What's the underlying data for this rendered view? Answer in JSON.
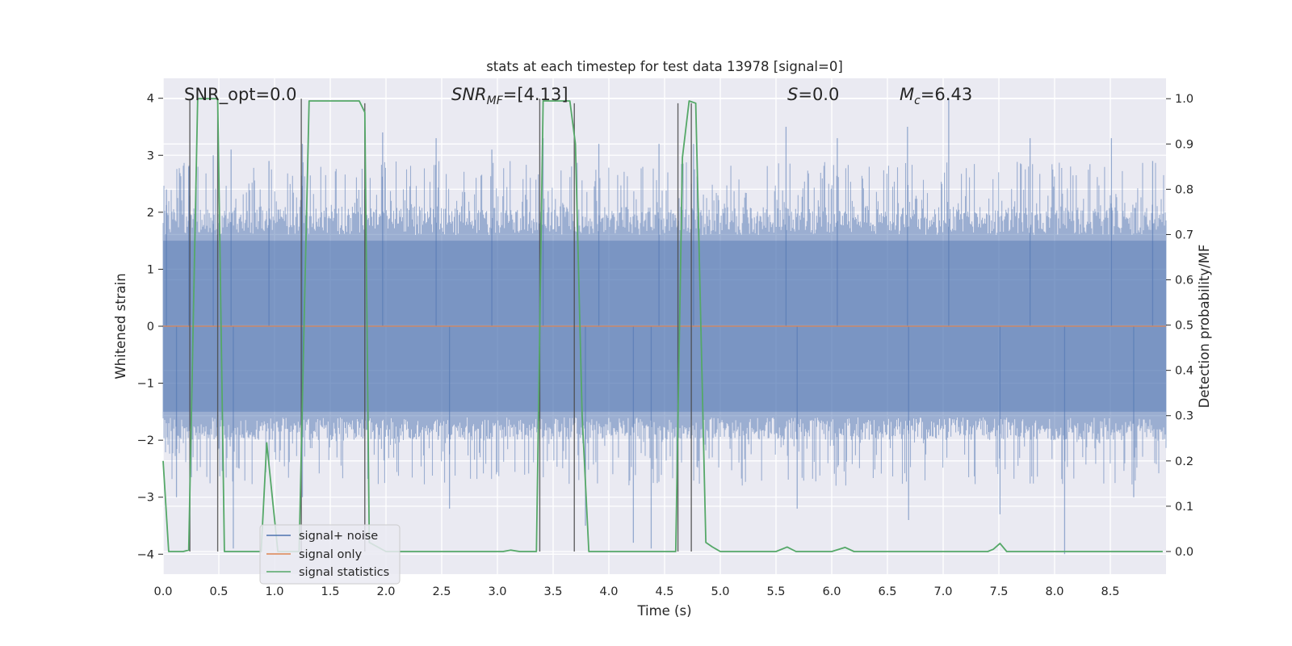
{
  "chart_data": {
    "type": "line",
    "title": "stats at each timestep for test data 13978 [signal=0]",
    "xlabel": "Time (s)",
    "ylabel_left": "Whitened strain",
    "ylabel_right": "Detection probability/MF",
    "xlim": [
      0,
      9.0
    ],
    "ylim_left": [
      -4.35,
      4.35
    ],
    "ylim_right": [
      -0.05,
      1.045
    ],
    "x_ticks": [
      "0.0",
      "0.5",
      "1.0",
      "1.5",
      "2.0",
      "2.5",
      "3.0",
      "3.5",
      "4.0",
      "4.5",
      "5.0",
      "5.5",
      "6.0",
      "6.5",
      "7.0",
      "7.5",
      "8.0",
      "8.5"
    ],
    "y_left_ticks": [
      {
        "v": 4,
        "label": "4"
      },
      {
        "v": 3,
        "label": "3"
      },
      {
        "v": 2,
        "label": "2"
      },
      {
        "v": 1,
        "label": "1"
      },
      {
        "v": 0,
        "label": "0"
      },
      {
        "v": -1,
        "label": "−1"
      },
      {
        "v": -2,
        "label": "−2"
      },
      {
        "v": -3,
        "label": "−3"
      },
      {
        "v": -4,
        "label": "−4"
      }
    ],
    "y_right_ticks": [
      "0.0",
      "0.1",
      "0.2",
      "0.3",
      "0.4",
      "0.5",
      "0.6",
      "0.7",
      "0.8",
      "0.9",
      "1.0"
    ],
    "annotations": {
      "snr_opt": "SNR_opt=0.0",
      "snr_mf_sym": "SNR",
      "snr_mf_sub": "MF",
      "snr_mf_val": "=[4.13]",
      "s_sym": "S",
      "s_val": "=0.0",
      "mc_sym": "M",
      "mc_sub": "c",
      "mc_val": "=6.43"
    },
    "legend": {
      "position": "lower-left",
      "entries": [
        {
          "label": "signal+ noise",
          "color": "#4c72b0"
        },
        {
          "label": "signal only",
          "color": "#dd8452"
        },
        {
          "label": "signal statistics",
          "color": "#55a868"
        }
      ]
    },
    "series": [
      {
        "name": "signal+ noise",
        "color": "#4c72b0",
        "style": "noise band",
        "t_range": [
          0,
          9.0
        ],
        "typical_abs": 1.6,
        "peaks": [
          {
            "t": 0.03,
            "v": 2.4
          },
          {
            "t": 0.23,
            "v": 2.8
          },
          {
            "t": 0.45,
            "v": 3.0
          },
          {
            "t": 0.61,
            "v": 3.1
          },
          {
            "t": 0.95,
            "v": 2.9
          },
          {
            "t": 1.25,
            "v": 3.2
          },
          {
            "t": 1.97,
            "v": 3.4
          },
          {
            "t": 2.45,
            "v": 3.3
          },
          {
            "t": 2.95,
            "v": 3.1
          },
          {
            "t": 3.41,
            "v": 3.3
          },
          {
            "t": 3.91,
            "v": 3.2
          },
          {
            "t": 4.45,
            "v": 3.2
          },
          {
            "t": 4.76,
            "v": 3.2
          },
          {
            "t": 5.59,
            "v": 3.5
          },
          {
            "t": 6.05,
            "v": 3.3
          },
          {
            "t": 6.68,
            "v": 3.5
          },
          {
            "t": 7.05,
            "v": 4.0
          },
          {
            "t": 7.78,
            "v": 3.3
          },
          {
            "t": 8.51,
            "v": 3.3
          },
          {
            "t": 8.88,
            "v": 2.9
          },
          {
            "t": 0.12,
            "v": -3.0
          },
          {
            "t": 0.63,
            "v": -3.9
          },
          {
            "t": 1.25,
            "v": -3.0
          },
          {
            "t": 2.57,
            "v": -3.2
          },
          {
            "t": 3.79,
            "v": -3.5
          },
          {
            "t": 4.22,
            "v": -3.8
          },
          {
            "t": 4.38,
            "v": -3.9
          },
          {
            "t": 5.69,
            "v": -3.2
          },
          {
            "t": 6.69,
            "v": -3.4
          },
          {
            "t": 7.51,
            "v": -3.3
          },
          {
            "t": 8.09,
            "v": -4.0
          },
          {
            "t": 8.71,
            "v": -3.0
          }
        ]
      },
      {
        "name": "signal only",
        "color": "#dd8452",
        "x": [
          0,
          9.0
        ],
        "y": [
          0,
          0
        ]
      },
      {
        "name": "signal statistics",
        "color": "#55a868",
        "axis": "right",
        "x": [
          0.0,
          0.05,
          0.18,
          0.23,
          0.31,
          0.49,
          0.55,
          0.88,
          0.93,
          1.03,
          1.22,
          1.27,
          1.31,
          1.76,
          1.81,
          1.85,
          2.0,
          2.5,
          3.05,
          3.12,
          3.2,
          3.35,
          3.41,
          3.65,
          3.7,
          3.76,
          3.82,
          3.85,
          3.9,
          4.0,
          4.5,
          4.6,
          4.66,
          4.72,
          4.78,
          4.87,
          4.93,
          5.0,
          5.5,
          5.6,
          5.68,
          6.0,
          6.12,
          6.2,
          6.5,
          7.0,
          7.4,
          7.45,
          7.51,
          7.57,
          8.0,
          8.5,
          8.97
        ],
        "y": [
          0.2,
          0.0,
          0.0,
          0.003,
          1.0,
          1.0,
          0.0,
          0.0,
          0.24,
          0.0,
          0.0,
          0.56,
          0.995,
          0.995,
          0.97,
          0.02,
          0.0,
          0.0,
          0.0,
          0.003,
          0.0,
          0.0,
          0.995,
          0.995,
          0.9,
          0.3,
          0.0,
          0.0,
          0.0,
          0.0,
          0.0,
          0.0,
          0.87,
          0.995,
          0.99,
          0.02,
          0.01,
          0.0,
          0.0,
          0.01,
          0.0,
          0.0,
          0.009,
          0.0,
          0.0,
          0.0,
          0.0,
          0.005,
          0.018,
          0.0,
          0.0,
          0.0,
          0.0
        ]
      }
    ],
    "vertical_markers": [
      {
        "x": 0.24,
        "top": 1.0
      },
      {
        "x": 0.49,
        "top": 1.0
      },
      {
        "x": 1.24,
        "top": 1.0
      },
      {
        "x": 1.81,
        "top": 0.99
      },
      {
        "x": 3.38,
        "top": 1.0
      },
      {
        "x": 3.69,
        "top": 0.99
      },
      {
        "x": 4.62,
        "top": 0.99
      },
      {
        "x": 4.74,
        "top": 0.99
      }
    ]
  }
}
